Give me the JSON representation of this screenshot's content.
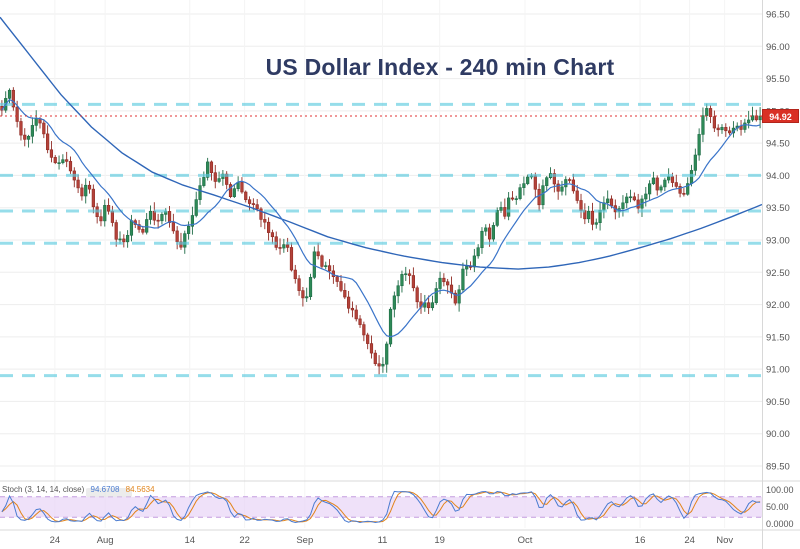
{
  "title": "US Dollar Index - 240 min Chart",
  "current_price": {
    "value": 94.92,
    "label": "94.92"
  },
  "colors": {
    "up": "#1e6b46",
    "up_fill": "#2e8a57",
    "down": "#8f2a22",
    "down_fill": "#b4423a",
    "ma": "#3a74c9",
    "ma_slow": "#2f66b8",
    "support": "#5fcbdf",
    "current_line": "#e03131",
    "grid": "#ededed",
    "vgrid": "#f4f4f4",
    "axis_text": "#555555",
    "divider": "#d8d8d8",
    "stoch_k": "#4a7bd0",
    "stoch_d": "#e2841a",
    "band_fill": "#e9d7f7",
    "band_edge": "#c39bdf"
  },
  "price_axis": {
    "ticks": [
      {
        "v": 96.5,
        "label": "96.50"
      },
      {
        "v": 96.0,
        "label": "96.00"
      },
      {
        "v": 95.5,
        "label": "95.50"
      },
      {
        "v": 95.0,
        "label": "95.00"
      },
      {
        "v": 94.5,
        "label": "94.50"
      },
      {
        "v": 94.0,
        "label": "94.00"
      },
      {
        "v": 93.5,
        "label": "93.50"
      },
      {
        "v": 93.0,
        "label": "93.00"
      },
      {
        "v": 92.5,
        "label": "92.50"
      },
      {
        "v": 92.0,
        "label": "92.00"
      },
      {
        "v": 91.5,
        "label": "91.50"
      },
      {
        "v": 91.0,
        "label": "91.00"
      },
      {
        "v": 90.5,
        "label": "90.50"
      },
      {
        "v": 90.0,
        "label": "90.00"
      },
      {
        "v": 89.5,
        "label": "89.50"
      }
    ]
  },
  "stoch_axis": {
    "ticks": [
      {
        "v": 100,
        "label": "100.00"
      },
      {
        "v": 50,
        "label": "50.00"
      },
      {
        "v": 0,
        "label": "0.0000"
      }
    ]
  },
  "x_labels": [
    {
      "t": "24",
      "f": 0.072
    },
    {
      "t": "Aug",
      "f": 0.138
    },
    {
      "t": "14",
      "f": 0.249
    },
    {
      "t": "22",
      "f": 0.321
    },
    {
      "t": "Sep",
      "f": 0.4
    },
    {
      "t": "11",
      "f": 0.502
    },
    {
      "t": "19",
      "f": 0.577
    },
    {
      "t": "Oct",
      "f": 0.689
    },
    {
      "t": "16",
      "f": 0.84
    },
    {
      "t": "24",
      "f": 0.905
    },
    {
      "t": "Nov",
      "f": 0.951
    }
  ],
  "stoch_legend": {
    "name": "Stoch (3, 14, 14, close)",
    "k_value": "94.6708",
    "d_value": "84.5634"
  },
  "chart_data": {
    "type": "candlestick",
    "title": "US Dollar Index - 240 min Chart",
    "timeframe": "240 min",
    "ylim": [
      89.5,
      96.5
    ],
    "bar_count": 200,
    "current_price": 94.92,
    "support_levels": [
      95.1,
      94.0,
      93.45,
      92.95,
      90.9
    ],
    "close_path": [
      [
        0.0,
        95.05
      ],
      [
        0.01,
        95.28
      ],
      [
        0.022,
        94.7
      ],
      [
        0.033,
        94.55
      ],
      [
        0.046,
        94.95
      ],
      [
        0.06,
        94.45
      ],
      [
        0.072,
        94.15
      ],
      [
        0.085,
        94.28
      ],
      [
        0.095,
        93.95
      ],
      [
        0.105,
        93.65
      ],
      [
        0.112,
        93.88
      ],
      [
        0.125,
        93.4
      ],
      [
        0.131,
        93.25
      ],
      [
        0.138,
        93.62
      ],
      [
        0.151,
        93.0
      ],
      [
        0.164,
        92.92
      ],
      [
        0.171,
        93.35
      ],
      [
        0.184,
        93.1
      ],
      [
        0.197,
        93.5
      ],
      [
        0.203,
        93.28
      ],
      [
        0.217,
        93.42
      ],
      [
        0.23,
        93.05
      ],
      [
        0.236,
        92.9
      ],
      [
        0.249,
        93.3
      ],
      [
        0.262,
        93.85
      ],
      [
        0.272,
        94.22
      ],
      [
        0.282,
        93.9
      ],
      [
        0.291,
        94.05
      ],
      [
        0.302,
        93.7
      ],
      [
        0.311,
        93.92
      ],
      [
        0.321,
        93.6
      ],
      [
        0.335,
        93.5
      ],
      [
        0.344,
        93.28
      ],
      [
        0.354,
        93.1
      ],
      [
        0.365,
        92.8
      ],
      [
        0.374,
        93.02
      ],
      [
        0.381,
        92.6
      ],
      [
        0.394,
        92.2
      ],
      [
        0.4,
        91.98
      ],
      [
        0.407,
        92.45
      ],
      [
        0.413,
        92.85
      ],
      [
        0.42,
        92.65
      ],
      [
        0.433,
        92.55
      ],
      [
        0.446,
        92.25
      ],
      [
        0.459,
        91.95
      ],
      [
        0.472,
        91.65
      ],
      [
        0.485,
        91.3
      ],
      [
        0.494,
        91.02
      ],
      [
        0.502,
        91.0
      ],
      [
        0.508,
        91.45
      ],
      [
        0.512,
        91.9
      ],
      [
        0.518,
        92.2
      ],
      [
        0.528,
        92.45
      ],
      [
        0.538,
        92.5
      ],
      [
        0.545,
        92.15
      ],
      [
        0.551,
        91.9
      ],
      [
        0.558,
        92.05
      ],
      [
        0.564,
        91.88
      ],
      [
        0.571,
        92.2
      ],
      [
        0.577,
        92.42
      ],
      [
        0.59,
        92.3
      ],
      [
        0.597,
        91.98
      ],
      [
        0.604,
        92.3
      ],
      [
        0.61,
        92.6
      ],
      [
        0.617,
        92.5
      ],
      [
        0.627,
        92.85
      ],
      [
        0.636,
        93.25
      ],
      [
        0.643,
        93.05
      ],
      [
        0.65,
        93.35
      ],
      [
        0.656,
        93.6
      ],
      [
        0.663,
        93.4
      ],
      [
        0.669,
        93.7
      ],
      [
        0.676,
        93.52
      ],
      [
        0.682,
        93.8
      ],
      [
        0.689,
        93.92
      ],
      [
        0.696,
        94.05
      ],
      [
        0.702,
        93.8
      ],
      [
        0.709,
        93.58
      ],
      [
        0.715,
        93.9
      ],
      [
        0.722,
        94.05
      ],
      [
        0.728,
        93.88
      ],
      [
        0.735,
        93.68
      ],
      [
        0.741,
        93.9
      ],
      [
        0.748,
        94.0
      ],
      [
        0.754,
        93.8
      ],
      [
        0.761,
        93.5
      ],
      [
        0.768,
        93.3
      ],
      [
        0.774,
        93.42
      ],
      [
        0.781,
        93.2
      ],
      [
        0.787,
        93.42
      ],
      [
        0.794,
        93.55
      ],
      [
        0.8,
        93.62
      ],
      [
        0.807,
        93.5
      ],
      [
        0.813,
        93.42
      ],
      [
        0.82,
        93.6
      ],
      [
        0.827,
        93.72
      ],
      [
        0.833,
        93.62
      ],
      [
        0.84,
        93.5
      ],
      [
        0.846,
        93.7
      ],
      [
        0.853,
        93.82
      ],
      [
        0.859,
        93.92
      ],
      [
        0.866,
        93.72
      ],
      [
        0.872,
        93.82
      ],
      [
        0.879,
        94.0
      ],
      [
        0.885,
        93.9
      ],
      [
        0.892,
        93.8
      ],
      [
        0.898,
        93.62
      ],
      [
        0.905,
        93.9
      ],
      [
        0.911,
        94.12
      ],
      [
        0.918,
        94.5
      ],
      [
        0.924,
        94.88
      ],
      [
        0.931,
        95.1
      ],
      [
        0.938,
        94.8
      ],
      [
        0.944,
        94.68
      ],
      [
        0.951,
        94.8
      ],
      [
        0.957,
        94.62
      ],
      [
        0.964,
        94.72
      ],
      [
        0.97,
        94.8
      ],
      [
        0.977,
        94.74
      ],
      [
        0.984,
        94.85
      ],
      [
        0.99,
        94.88
      ],
      [
        1.0,
        94.92
      ]
    ],
    "ma_fast": {
      "type": "sma",
      "window": 12
    },
    "ma_slow_path": [
      [
        0.0,
        96.45
      ],
      [
        0.04,
        95.85
      ],
      [
        0.08,
        95.25
      ],
      [
        0.12,
        94.75
      ],
      [
        0.16,
        94.35
      ],
      [
        0.2,
        94.05
      ],
      [
        0.24,
        93.85
      ],
      [
        0.28,
        93.7
      ],
      [
        0.33,
        93.5
      ],
      [
        0.38,
        93.28
      ],
      [
        0.43,
        93.05
      ],
      [
        0.48,
        92.88
      ],
      [
        0.53,
        92.75
      ],
      [
        0.58,
        92.65
      ],
      [
        0.63,
        92.58
      ],
      [
        0.68,
        92.55
      ],
      [
        0.72,
        92.58
      ],
      [
        0.76,
        92.65
      ],
      [
        0.8,
        92.75
      ],
      [
        0.84,
        92.88
      ],
      [
        0.88,
        93.02
      ],
      [
        0.92,
        93.18
      ],
      [
        0.96,
        93.36
      ],
      [
        1.0,
        93.55
      ]
    ],
    "stoch": {
      "window": 9,
      "smooth_k": 2,
      "smooth_d": 3,
      "band": [
        20,
        80
      ],
      "ylim": [
        0,
        100
      ]
    }
  }
}
